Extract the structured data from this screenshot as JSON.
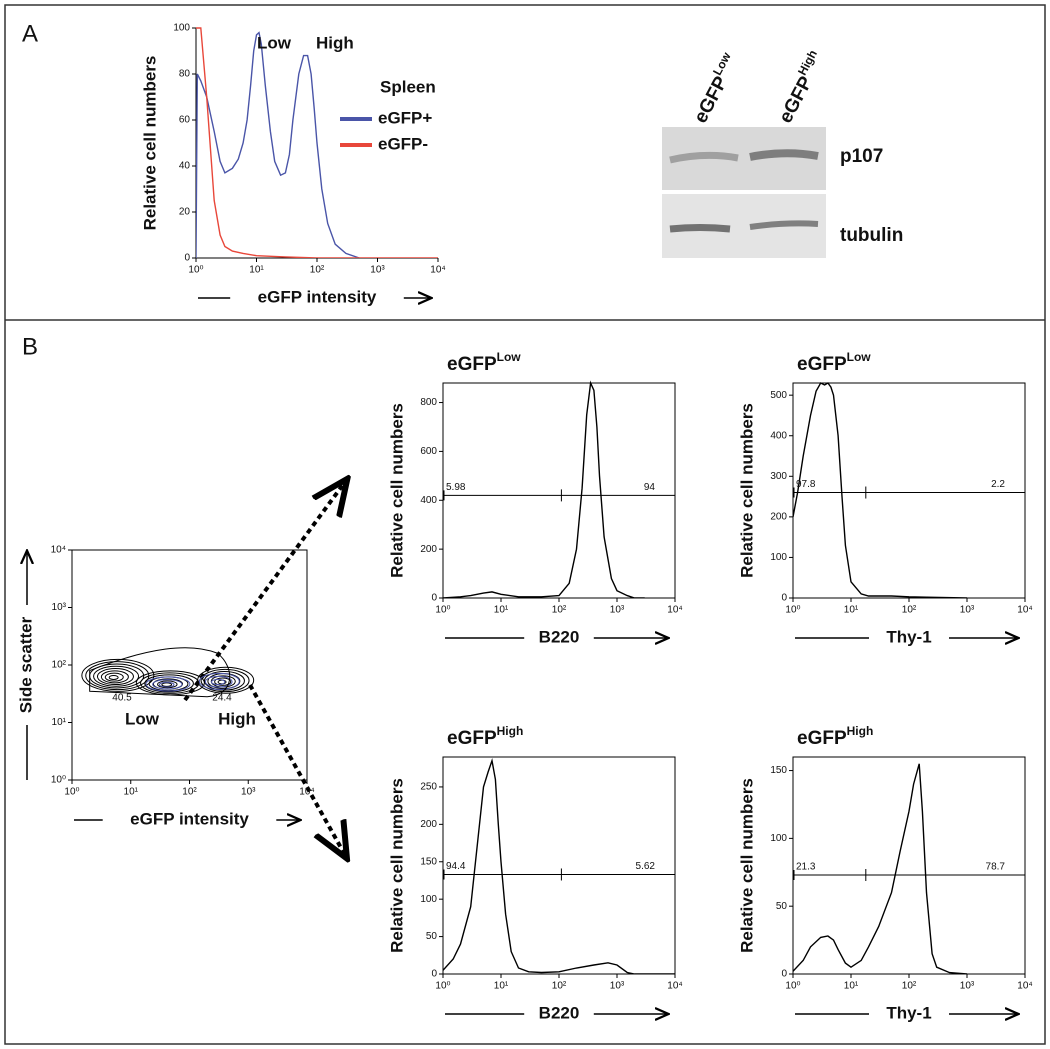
{
  "panels": [
    "A",
    "B"
  ],
  "blot": {
    "lanes": [
      {
        "text": "eGFP",
        "superscript": "Low"
      },
      {
        "text": "eGFP",
        "superscript": "High"
      }
    ],
    "bands": [
      "p107",
      "tubulin"
    ]
  },
  "chart_data": [
    {
      "type": "line",
      "box": false,
      "x_label": "eGFP intensity",
      "y_label": "Relative cell numbers",
      "xscale": "log",
      "xlim": [
        1,
        10000
      ],
      "xticks": [
        {
          "value": 1,
          "label": "10⁰"
        },
        {
          "value": 10,
          "label": "10¹"
        },
        {
          "value": 100,
          "label": "10²"
        },
        {
          "value": 1000,
          "label": "10³"
        },
        {
          "value": 10000,
          "label": "10⁴"
        }
      ],
      "ylim": [
        0,
        100
      ],
      "yticks": [
        0,
        20,
        40,
        60,
        80,
        100
      ],
      "legend_title": "Spleen",
      "annotations": [
        "Low",
        "High"
      ],
      "series": [
        {
          "name": "eGFP+",
          "color": "#4a55a8",
          "x": [
            1,
            1.05,
            1.2,
            1.5,
            2,
            2.5,
            3,
            4,
            5,
            6,
            7,
            8,
            9,
            10,
            11,
            12,
            14,
            17,
            20,
            25,
            30,
            35,
            40,
            50,
            60,
            70,
            80,
            90,
            100,
            120,
            150,
            200,
            300,
            500
          ],
          "values": [
            0,
            80,
            77,
            70,
            55,
            42,
            37,
            39,
            43,
            50,
            60,
            75,
            90,
            97,
            98,
            93,
            75,
            55,
            42,
            36,
            37,
            45,
            60,
            80,
            88,
            88,
            80,
            65,
            50,
            30,
            15,
            6,
            2,
            0
          ]
        },
        {
          "name": "eGFP-",
          "color": "#e8473a",
          "x": [
            1,
            1.2,
            1.5,
            2,
            2.5,
            3,
            4,
            6,
            10,
            30,
            100,
            10000
          ],
          "values": [
            100,
            100,
            70,
            25,
            10,
            5,
            3,
            2,
            1,
            0.5,
            0,
            0
          ]
        }
      ]
    },
    {
      "type": "contour",
      "box": true,
      "x_label": "eGFP intensity",
      "y_label": "Side scatter",
      "xscale": "log",
      "yscale": "log",
      "xlim": [
        1,
        10000
      ],
      "xticks": [
        {
          "value": 1,
          "label": "10⁰"
        },
        {
          "value": 10,
          "label": "10¹"
        },
        {
          "value": 100,
          "label": "10²"
        },
        {
          "value": 1000,
          "label": "10³"
        },
        {
          "value": 10000,
          "label": "10⁴"
        }
      ],
      "ylim": [
        1,
        10000
      ],
      "yticks": [
        {
          "value": 1,
          "label": "10⁰"
        },
        {
          "value": 10,
          "label": "10¹"
        },
        {
          "value": 100,
          "label": "10²"
        },
        {
          "value": 1000,
          "label": "10³"
        },
        {
          "value": 10000,
          "label": "10⁴"
        }
      ],
      "gates": [
        {
          "name": "Low",
          "percent": 40.5
        },
        {
          "name": "High",
          "percent": 24.4
        }
      ]
    },
    {
      "type": "line",
      "box": true,
      "title": {
        "text": "eGFP",
        "superscript": "Low"
      },
      "x_label": "B220",
      "y_label": "Relative cell numbers",
      "xscale": "log",
      "xlim": [
        1,
        10000
      ],
      "xticks": [
        {
          "value": 1,
          "label": "10⁰"
        },
        {
          "value": 10,
          "label": "10¹"
        },
        {
          "value": 100,
          "label": "10²"
        },
        {
          "value": 1000,
          "label": "10³"
        },
        {
          "value": 10000,
          "label": "10⁴"
        }
      ],
      "ylim": [
        0,
        880
      ],
      "yticks": [
        0,
        200,
        400,
        600,
        800
      ],
      "gate": {
        "y": 420,
        "x_split": 110,
        "left": 5.98,
        "right": 94
      },
      "series": [
        {
          "color": "#000000",
          "x": [
            1,
            2,
            3,
            5,
            7,
            10,
            20,
            50,
            100,
            150,
            200,
            250,
            300,
            350,
            400,
            450,
            500,
            600,
            800,
            1000,
            1500,
            2000,
            3000
          ],
          "values": [
            0,
            5,
            10,
            20,
            25,
            15,
            5,
            5,
            10,
            60,
            200,
            450,
            750,
            880,
            850,
            700,
            500,
            250,
            80,
            30,
            10,
            0,
            0
          ]
        }
      ]
    },
    {
      "type": "line",
      "box": true,
      "title": {
        "text": "eGFP",
        "superscript": "Low"
      },
      "x_label": "Thy-1",
      "y_label": "Relative cell numbers",
      "xscale": "log",
      "xlim": [
        1,
        10000
      ],
      "xticks": [
        {
          "value": 1,
          "label": "10⁰"
        },
        {
          "value": 10,
          "label": "10¹"
        },
        {
          "value": 100,
          "label": "10²"
        },
        {
          "value": 1000,
          "label": "10³"
        },
        {
          "value": 10000,
          "label": "10⁴"
        }
      ],
      "ylim": [
        0,
        530
      ],
      "yticks": [
        0,
        100,
        200,
        300,
        400,
        500
      ],
      "gate": {
        "y": 260,
        "x_split": 18,
        "left": 97.8,
        "right": 2.2
      },
      "series": [
        {
          "color": "#000000",
          "x": [
            1,
            1.2,
            1.5,
            2,
            2.5,
            3,
            3.5,
            4,
            4.5,
            5,
            6,
            7,
            8,
            10,
            15,
            20,
            50,
            100,
            200,
            1000
          ],
          "values": [
            200,
            260,
            350,
            450,
            510,
            530,
            525,
            530,
            520,
            500,
            400,
            250,
            130,
            40,
            10,
            5,
            5,
            3,
            2,
            0
          ]
        }
      ]
    },
    {
      "type": "line",
      "box": true,
      "title": {
        "text": "eGFP",
        "superscript": "High"
      },
      "x_label": "B220",
      "y_label": "Relative cell numbers",
      "xscale": "log",
      "xlim": [
        1,
        10000
      ],
      "xticks": [
        {
          "value": 1,
          "label": "10⁰"
        },
        {
          "value": 10,
          "label": "10¹"
        },
        {
          "value": 100,
          "label": "10²"
        },
        {
          "value": 1000,
          "label": "10³"
        },
        {
          "value": 10000,
          "label": "10⁴"
        }
      ],
      "ylim": [
        0,
        290
      ],
      "yticks": [
        0,
        50,
        100,
        150,
        200,
        250
      ],
      "gate": {
        "y": 133,
        "x_split": 110,
        "left": 94.4,
        "right": 5.62
      },
      "series": [
        {
          "color": "#000000",
          "x": [
            1,
            1.5,
            2,
            3,
            4,
            5,
            6,
            7,
            8,
            9,
            10,
            12,
            15,
            20,
            30,
            50,
            100,
            200,
            400,
            700,
            1000,
            1500,
            2000,
            10000
          ],
          "values": [
            5,
            20,
            40,
            90,
            180,
            250,
            270,
            285,
            260,
            200,
            150,
            80,
            30,
            8,
            3,
            2,
            3,
            8,
            12,
            15,
            12,
            2,
            0,
            0
          ]
        }
      ]
    },
    {
      "type": "line",
      "box": true,
      "title": {
        "text": "eGFP",
        "superscript": "High"
      },
      "x_label": "Thy-1",
      "y_label": "Relative cell numbers",
      "xscale": "log",
      "xlim": [
        1,
        10000
      ],
      "xticks": [
        {
          "value": 1,
          "label": "10⁰"
        },
        {
          "value": 10,
          "label": "10¹"
        },
        {
          "value": 100,
          "label": "10²"
        },
        {
          "value": 1000,
          "label": "10³"
        },
        {
          "value": 10000,
          "label": "10⁴"
        }
      ],
      "ylim": [
        0,
        160
      ],
      "yticks": [
        0,
        50,
        100,
        150
      ],
      "gate": {
        "y": 73,
        "x_split": 18,
        "left": 21.3,
        "right": 78.7
      },
      "series": [
        {
          "color": "#000000",
          "x": [
            1,
            1.5,
            2,
            3,
            4,
            5,
            6,
            8,
            10,
            15,
            20,
            30,
            50,
            70,
            100,
            120,
            150,
            170,
            200,
            250,
            300,
            500,
            1000
          ],
          "values": [
            2,
            10,
            20,
            27,
            28,
            25,
            18,
            8,
            5,
            10,
            20,
            35,
            60,
            90,
            120,
            140,
            155,
            120,
            60,
            15,
            5,
            1,
            0
          ]
        }
      ]
    }
  ]
}
